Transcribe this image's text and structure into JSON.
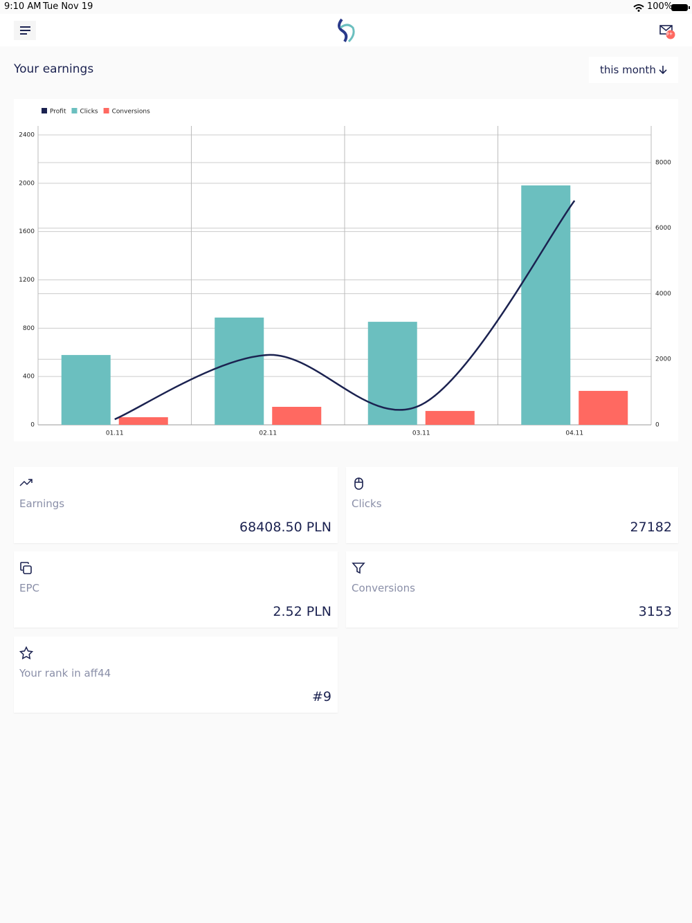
{
  "status_bar": {
    "time": "9:10 AM",
    "date": "Tue Nov 19",
    "battery": "100%"
  },
  "header": {
    "badge": "9+"
  },
  "section": {
    "title": "Your earnings",
    "period": "this month"
  },
  "chart_data": {
    "type": "bar",
    "categories": [
      "01.11",
      "02.11",
      "03.11",
      "04.11"
    ],
    "series": [
      {
        "name": "Profit",
        "color": "#1b2250",
        "type": "line",
        "axis": "y2",
        "values": [
          169,
          2132,
          612,
          6838
        ]
      },
      {
        "name": "Clicks",
        "color": "#6bbfbf",
        "values": [
          578,
          888,
          853,
          1982
        ]
      },
      {
        "name": "Conversions",
        "color": "#ff6961",
        "values": [
          63,
          149,
          115,
          281
        ]
      }
    ],
    "ylim": [
      0,
      2400
    ],
    "yticks": [
      0,
      400,
      800,
      1200,
      1600,
      2000,
      2400
    ],
    "y2lim": [
      0,
      8844
    ],
    "y2ticks": [
      0,
      2000,
      4000,
      6000,
      8000
    ],
    "grid": true,
    "legend": "top-left"
  },
  "cards": [
    {
      "label": "Earnings",
      "value": "68408.50 PLN"
    },
    {
      "label": "Clicks",
      "value": "27182"
    },
    {
      "label": "EPC",
      "value": "2.52 PLN"
    },
    {
      "label": "Conversions",
      "value": "3153"
    },
    {
      "label": "Your rank in aff44",
      "value": "#9"
    }
  ]
}
